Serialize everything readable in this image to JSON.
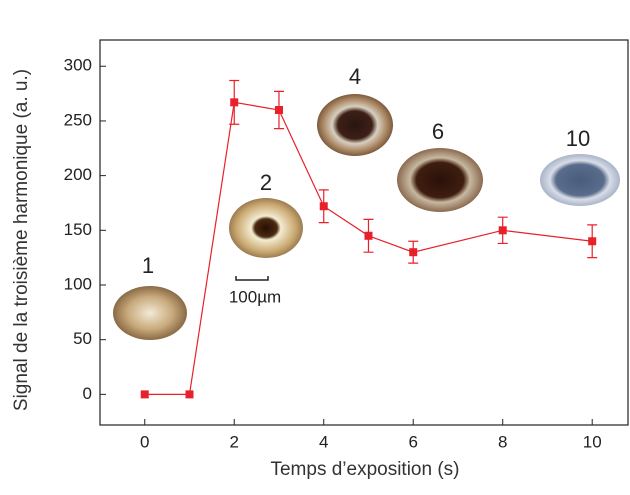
{
  "chart_data": {
    "type": "line",
    "x_label": "Temps d’exposition (s)",
    "y_label": "Signal de la troisième harmonique (a. u.)",
    "x": [
      0,
      1,
      2,
      3,
      4,
      5,
      6,
      8,
      10
    ],
    "series": [
      {
        "color": "#e8202a",
        "values": [
          0,
          0,
          267,
          260,
          172,
          145,
          130,
          150,
          140
        ],
        "errors": [
          0,
          0,
          20,
          17,
          15,
          15,
          10,
          12,
          15
        ]
      }
    ],
    "xlim": [
      -1,
      10.8
    ],
    "ylim": [
      -28,
      324
    ],
    "xticks": [
      0,
      2,
      4,
      6,
      8,
      10
    ],
    "yticks": [
      0,
      50,
      100,
      150,
      200,
      250,
      300
    ],
    "annotations": [
      "1",
      "2",
      "4",
      "6",
      "10"
    ],
    "scale_bar_label": "100µm"
  }
}
